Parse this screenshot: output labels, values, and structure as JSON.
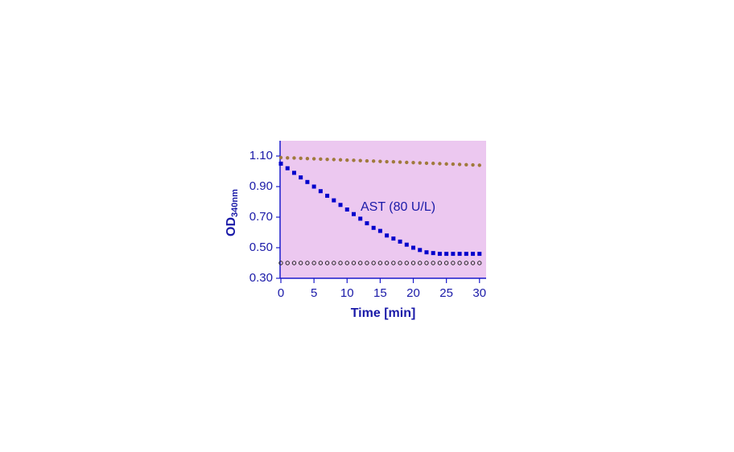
{
  "chart_data": {
    "type": "scatter",
    "x_label": "Time  [min]",
    "y_label": "OD",
    "y_label_sub": "340nm",
    "annotation": "AST (80 U/L)",
    "x": [
      0,
      1,
      2,
      3,
      4,
      5,
      6,
      7,
      8,
      9,
      10,
      11,
      12,
      13,
      14,
      15,
      16,
      17,
      18,
      19,
      20,
      21,
      22,
      23,
      24,
      25,
      26,
      27,
      28,
      29,
      30
    ],
    "series": [
      {
        "color": "#a07a3c",
        "marker": "circle",
        "values": [
          1.09,
          1.088,
          1.087,
          1.085,
          1.083,
          1.082,
          1.08,
          1.078,
          1.077,
          1.075,
          1.073,
          1.072,
          1.07,
          1.068,
          1.067,
          1.065,
          1.063,
          1.062,
          1.06,
          1.058,
          1.057,
          1.055,
          1.053,
          1.052,
          1.05,
          1.048,
          1.047,
          1.045,
          1.043,
          1.042,
          1.04
        ]
      },
      {
        "color": "#0000cc",
        "marker": "square",
        "values": [
          1.05,
          1.02,
          0.99,
          0.96,
          0.93,
          0.9,
          0.87,
          0.84,
          0.81,
          0.78,
          0.75,
          0.72,
          0.69,
          0.66,
          0.63,
          0.61,
          0.58,
          0.56,
          0.54,
          0.52,
          0.5,
          0.485,
          0.47,
          0.465,
          0.46,
          0.46,
          0.46,
          0.46,
          0.46,
          0.46,
          0.46
        ]
      },
      {
        "color": "#222222",
        "marker": "open-circle",
        "values": [
          0.4,
          0.4,
          0.4,
          0.4,
          0.4,
          0.4,
          0.4,
          0.4,
          0.4,
          0.4,
          0.4,
          0.4,
          0.4,
          0.4,
          0.4,
          0.4,
          0.4,
          0.4,
          0.4,
          0.4,
          0.4,
          0.4,
          0.4,
          0.4,
          0.4,
          0.4,
          0.4,
          0.4,
          0.4,
          0.4,
          0.4
        ]
      }
    ],
    "xlim": [
      0,
      31
    ],
    "xticks": [
      0,
      5,
      10,
      15,
      20,
      25,
      30
    ],
    "ylim": [
      0.3,
      1.2
    ],
    "yticks": [
      {
        "value": 0.3,
        "label": "0.30"
      },
      {
        "value": 0.5,
        "label": "0.50"
      },
      {
        "value": 0.7,
        "label": "0.70"
      },
      {
        "value": 0.9,
        "label": "0.90"
      },
      {
        "value": 1.1,
        "label": "1.10"
      }
    ],
    "background": "#ecc8f0",
    "axis_color": "#1a1acc",
    "text_color": "#1a1aa8"
  }
}
